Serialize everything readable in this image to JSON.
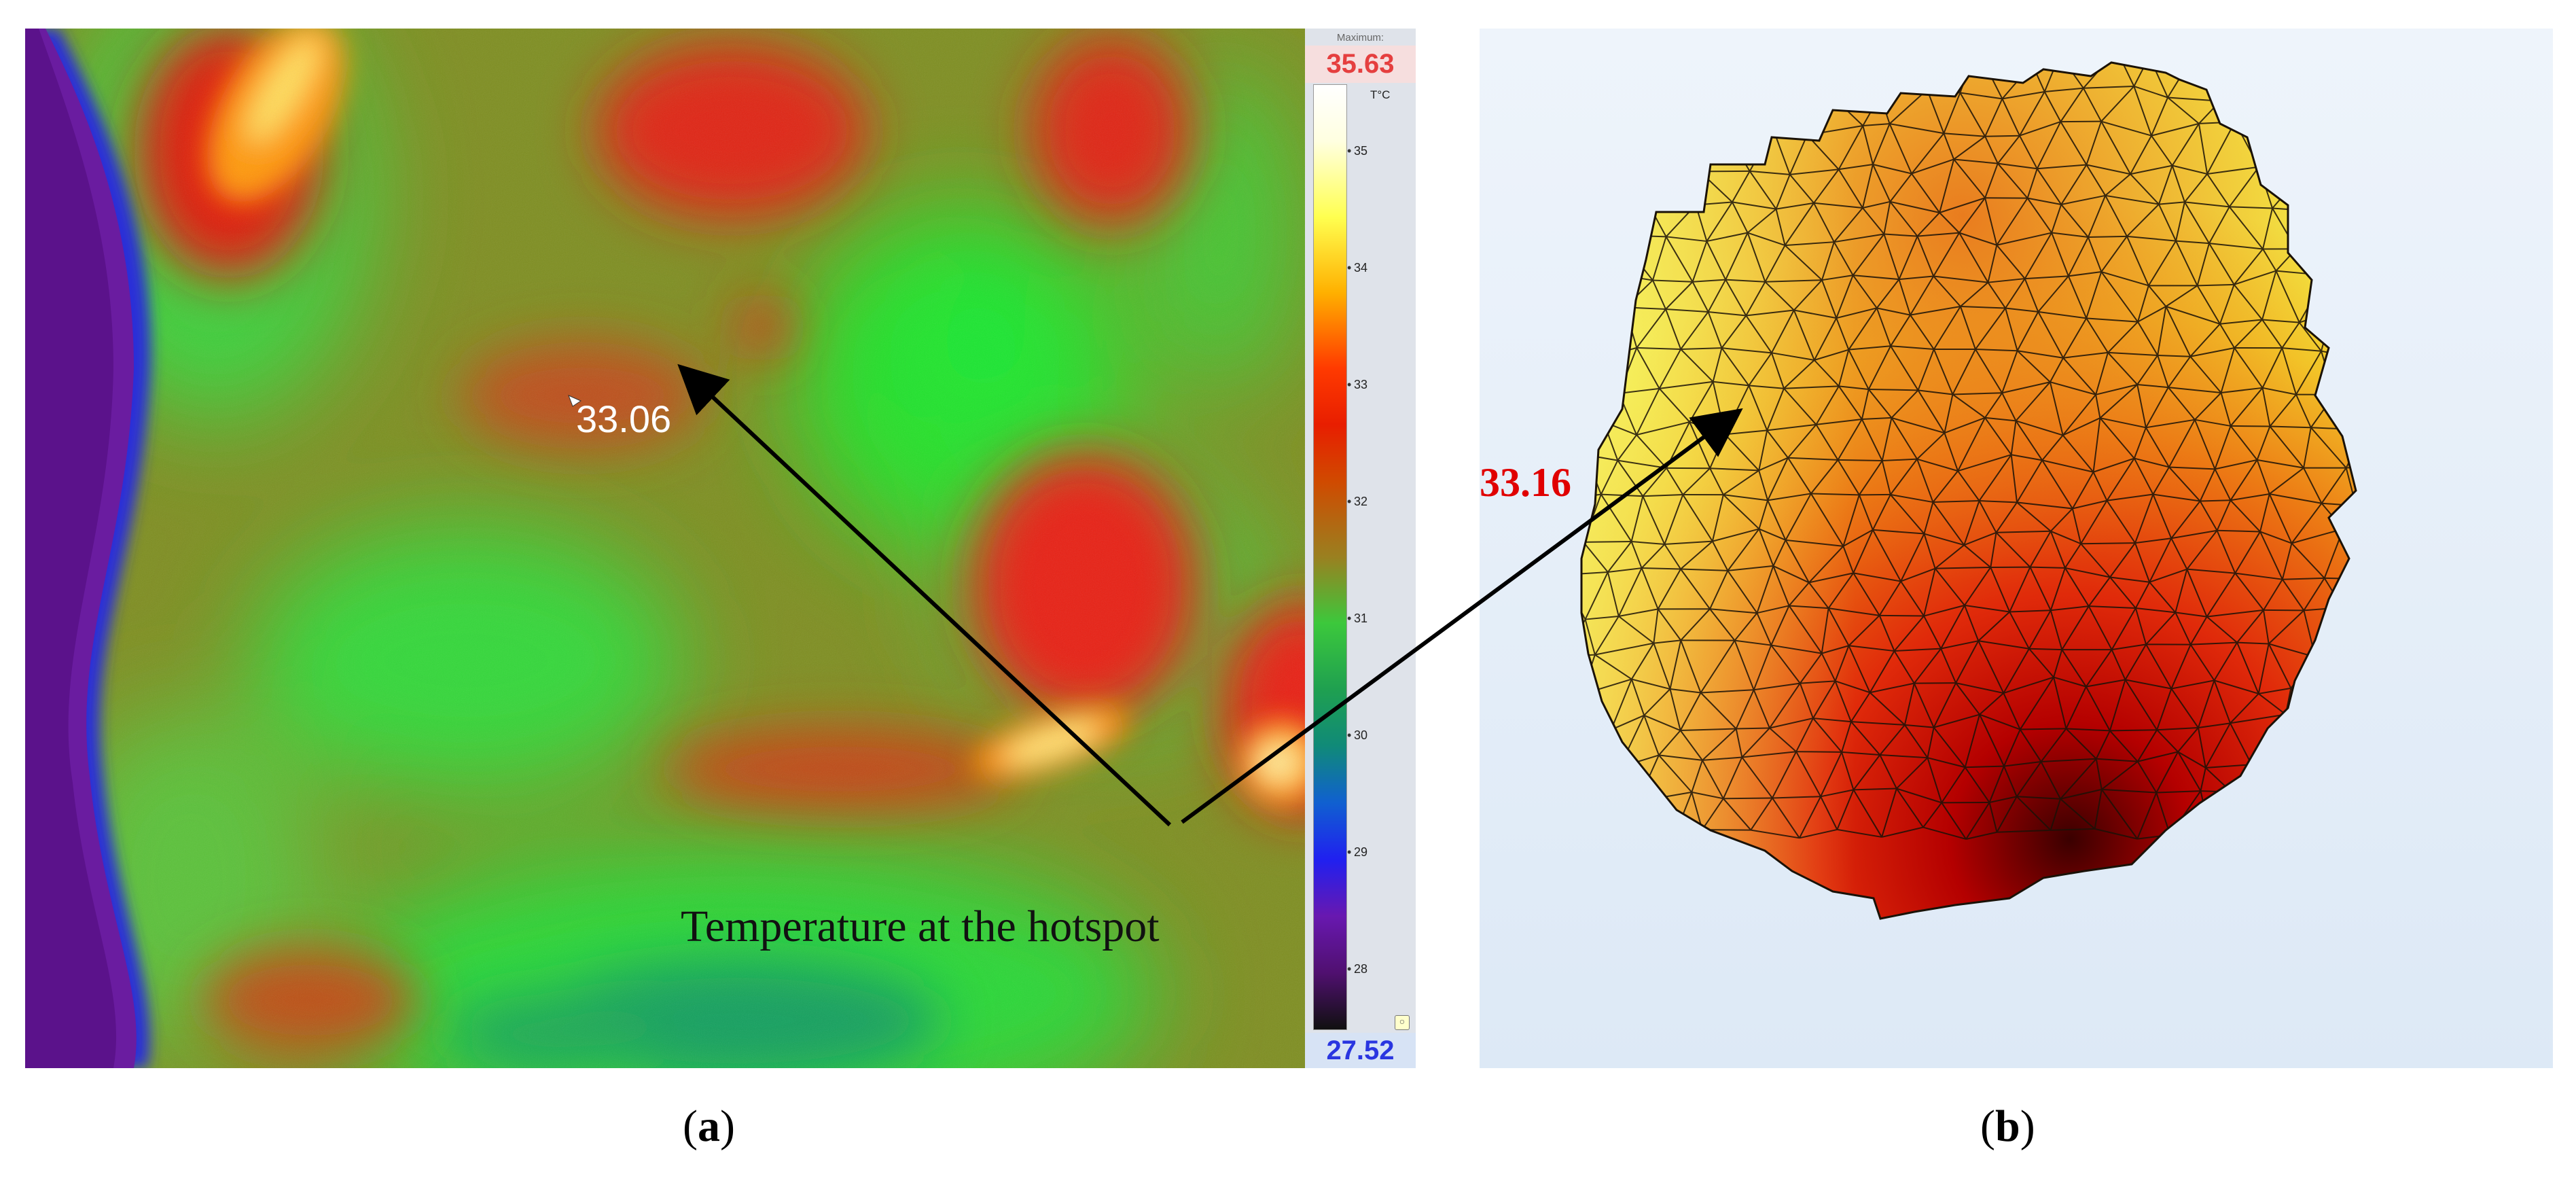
{
  "thermal_image": {
    "max_label": "Maximum:",
    "max_value": "35.63",
    "min_value": "27.52",
    "unit": "T°C",
    "scale_ticks": [
      "35",
      "34",
      "33",
      "32",
      "31",
      "30",
      "29",
      "28"
    ],
    "spot_reading": "33.06"
  },
  "model": {
    "hotspot_value": "33.16"
  },
  "annotation": {
    "caption": "Temperature at the hotspot"
  },
  "panels": {
    "a": {
      "open": "(",
      "letter": "a",
      "close": ")"
    },
    "b": {
      "open": "(",
      "letter": "b",
      "close": ")"
    }
  },
  "colors": {
    "max_text": "#e53f3f",
    "min_text": "#2a36e0",
    "hotspot_value_text": "#e00000"
  }
}
